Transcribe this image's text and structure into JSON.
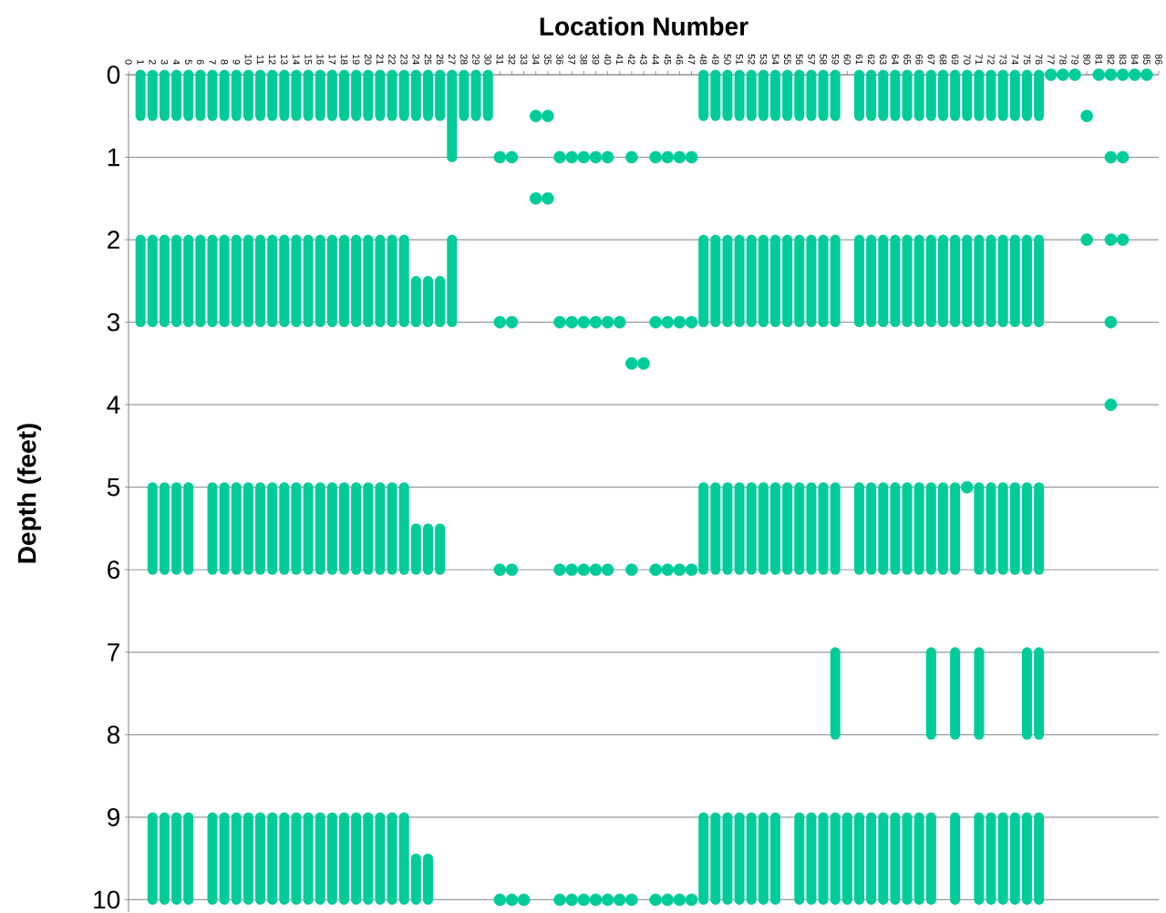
{
  "chart_data": {
    "type": "bar",
    "xlabel": "Location Number",
    "ylabel": "Depth (feet)",
    "categories": [
      "0",
      "1",
      "2",
      "3",
      "4",
      "5",
      "6",
      "7",
      "8",
      "9",
      "10",
      "11",
      "12",
      "13",
      "14",
      "15",
      "16",
      "17",
      "18",
      "19",
      "20",
      "21",
      "22",
      "23",
      "24",
      "25",
      "26",
      "27",
      "28",
      "29",
      "30",
      "31",
      "32",
      "33",
      "34",
      "35",
      "36",
      "37",
      "38",
      "39",
      "40",
      "41",
      "42",
      "43",
      "44",
      "45",
      "46",
      "47",
      "48",
      "49",
      "50",
      "51",
      "52",
      "53",
      "54",
      "55",
      "56",
      "57",
      "58",
      "59",
      "60",
      "61",
      "62",
      "63",
      "64",
      "65",
      "66",
      "67",
      "68",
      "69",
      "70",
      "71",
      "72",
      "73",
      "74",
      "75",
      "76",
      "77",
      "78",
      "79",
      "80",
      "81",
      "82",
      "83",
      "84",
      "85",
      "86"
    ],
    "series": [
      {
        "color": "#00cc99",
        "base": [
          null,
          0,
          0,
          0,
          0,
          0,
          0,
          0,
          0,
          0,
          0,
          0,
          0,
          0,
          0,
          0,
          0,
          0,
          0,
          0,
          0,
          0,
          0,
          0,
          0,
          0,
          0,
          0,
          0,
          0,
          0,
          null,
          null,
          null,
          null,
          null,
          null,
          null,
          null,
          null,
          null,
          null,
          null,
          null,
          null,
          null,
          null,
          null,
          0,
          0,
          0,
          0,
          0,
          0,
          0,
          0,
          0,
          0,
          0,
          0,
          9,
          0,
          0,
          0,
          0,
          0,
          0,
          0,
          0,
          0,
          0,
          0,
          0,
          0,
          0,
          0,
          0,
          null,
          null,
          null,
          null,
          null,
          null,
          null,
          null,
          null,
          null
        ],
        "values": [
          null,
          0.5,
          0.5,
          0.5,
          0.5,
          0.5,
          0.5,
          0.5,
          0.5,
          0.5,
          0.5,
          0.5,
          0.5,
          0.5,
          0.5,
          0.5,
          0.5,
          0.5,
          0.5,
          0.5,
          0.5,
          0.5,
          0.5,
          0.5,
          0.5,
          0.5,
          0.5,
          1,
          0.5,
          0.5,
          0.5,
          null,
          null,
          null,
          null,
          null,
          null,
          null,
          null,
          null,
          null,
          null,
          null,
          null,
          null,
          null,
          null,
          null,
          0.5,
          0.5,
          0.5,
          0.5,
          0.5,
          0.5,
          0.5,
          0.5,
          0.5,
          0.5,
          0.5,
          0.5,
          1,
          0.5,
          0.5,
          0.5,
          0.5,
          0.5,
          0.5,
          0.5,
          0.5,
          0.5,
          0.5,
          0.5,
          0.5,
          0.5,
          0.5,
          0.5,
          0.5,
          null,
          null,
          null,
          null,
          null,
          null,
          null,
          null,
          null,
          null
        ]
      },
      {
        "color": "#00cc99",
        "base": [
          null,
          2,
          2,
          2,
          2,
          2,
          2,
          2,
          2,
          2,
          2,
          2,
          2,
          2,
          2,
          2,
          2,
          2,
          2,
          2,
          2,
          2,
          2,
          2,
          2.5,
          2.5,
          2.5,
          2,
          null,
          null,
          null,
          null,
          null,
          null,
          null,
          null,
          null,
          null,
          null,
          null,
          null,
          null,
          null,
          null,
          null,
          null,
          null,
          null,
          2,
          2,
          2,
          2,
          2,
          2,
          2,
          2,
          2,
          2,
          2,
          2,
          null,
          2,
          2,
          2,
          2,
          2,
          2,
          2,
          2,
          2,
          2,
          2,
          2,
          2,
          2,
          2,
          2,
          null,
          null,
          null,
          null,
          null,
          null,
          null,
          null,
          null,
          null
        ],
        "values": [
          null,
          1,
          1,
          1,
          1,
          1,
          1,
          1,
          1,
          1,
          1,
          1,
          1,
          1,
          1,
          1,
          1,
          1,
          1,
          1,
          1,
          1,
          1,
          1,
          0.5,
          0.5,
          0.5,
          1,
          null,
          null,
          null,
          null,
          null,
          null,
          null,
          null,
          null,
          null,
          null,
          null,
          null,
          null,
          null,
          null,
          null,
          null,
          null,
          null,
          1,
          1,
          1,
          1,
          1,
          1,
          1,
          1,
          1,
          1,
          1,
          1,
          null,
          1,
          1,
          1,
          1,
          1,
          1,
          1,
          1,
          1,
          1,
          1,
          1,
          1,
          1,
          1,
          1,
          null,
          null,
          null,
          null,
          null,
          null,
          null,
          null,
          null,
          null
        ]
      },
      {
        "color": "#00cc99",
        "base": [
          null,
          null,
          5,
          5,
          5,
          5,
          null,
          5,
          5,
          5,
          5,
          5,
          5,
          5,
          5,
          5,
          5,
          5,
          5,
          5,
          5,
          5,
          5,
          5,
          5.5,
          5.5,
          5.5,
          null,
          null,
          null,
          null,
          null,
          null,
          null,
          null,
          null,
          null,
          null,
          null,
          null,
          null,
          null,
          null,
          null,
          null,
          null,
          null,
          null,
          5,
          5,
          5,
          5,
          5,
          5,
          5,
          5,
          5,
          5,
          5,
          5,
          null,
          5,
          5,
          5,
          5,
          5,
          5,
          5,
          5,
          5,
          null,
          5,
          5,
          5,
          5,
          5,
          5,
          null,
          null,
          null,
          null,
          null,
          null,
          null,
          null,
          null,
          null
        ],
        "values": [
          null,
          null,
          1,
          1,
          1,
          1,
          null,
          1,
          1,
          1,
          1,
          1,
          1,
          1,
          1,
          1,
          1,
          1,
          1,
          1,
          1,
          1,
          1,
          1,
          0.5,
          0.5,
          0.5,
          null,
          null,
          null,
          null,
          null,
          null,
          null,
          null,
          null,
          null,
          null,
          null,
          null,
          null,
          null,
          null,
          null,
          null,
          null,
          null,
          null,
          1,
          1,
          1,
          1,
          1,
          1,
          1,
          1,
          1,
          1,
          1,
          1,
          null,
          1,
          1,
          1,
          1,
          1,
          1,
          1,
          1,
          1,
          null,
          1,
          1,
          1,
          1,
          1,
          1,
          null,
          null,
          null,
          null,
          null,
          null,
          null,
          null,
          null,
          null
        ]
      },
      {
        "color": "#00cc99",
        "base": [
          null,
          null,
          9,
          9,
          9,
          9,
          null,
          9,
          9,
          9,
          9,
          9,
          9,
          9,
          9,
          9,
          9,
          9,
          9,
          9,
          9,
          9,
          9,
          9,
          9.5,
          9.5,
          null,
          null,
          null,
          null,
          null,
          null,
          null,
          null,
          null,
          null,
          null,
          null,
          null,
          null,
          null,
          null,
          null,
          null,
          null,
          null,
          null,
          null,
          9,
          9,
          9,
          9,
          9,
          9,
          9,
          null,
          9,
          9,
          9,
          7,
          null,
          9,
          9,
          9,
          9,
          9,
          9,
          7,
          null,
          7,
          null,
          7,
          9,
          9,
          9,
          7,
          7,
          null,
          null,
          null,
          null,
          null,
          null,
          null,
          null,
          null,
          null
        ],
        "values": [
          null,
          null,
          1,
          1,
          1,
          1,
          null,
          1,
          1,
          1,
          1,
          1,
          1,
          1,
          1,
          1,
          1,
          1,
          1,
          1,
          1,
          1,
          1,
          1,
          0.5,
          0.5,
          null,
          null,
          null,
          null,
          null,
          null,
          null,
          null,
          null,
          null,
          null,
          null,
          null,
          null,
          null,
          null,
          null,
          null,
          null,
          null,
          null,
          null,
          1,
          1,
          1,
          1,
          1,
          1,
          1,
          null,
          1,
          1,
          1,
          1,
          null,
          1,
          1,
          1,
          1,
          1,
          1,
          1,
          null,
          1,
          null,
          1,
          1,
          1,
          1,
          1,
          1,
          null,
          null,
          null,
          null,
          null,
          null,
          null,
          null,
          null,
          null
        ]
      },
      {
        "color": "#00cc99",
        "base": [
          null,
          null,
          null,
          null,
          null,
          null,
          null,
          null,
          null,
          null,
          null,
          null,
          null,
          null,
          null,
          null,
          null,
          null,
          null,
          null,
          null,
          null,
          null,
          null,
          null,
          null,
          null,
          null,
          null,
          null,
          null,
          null,
          null,
          null,
          null,
          null,
          null,
          null,
          null,
          null,
          null,
          null,
          null,
          null,
          null,
          null,
          null,
          null,
          null,
          null,
          null,
          null,
          null,
          null,
          null,
          null,
          null,
          null,
          null,
          9,
          null,
          null,
          null,
          null,
          null,
          null,
          null,
          9,
          null,
          9,
          null,
          9,
          null,
          null,
          null,
          9,
          9,
          null,
          null,
          null,
          null,
          null,
          null,
          null,
          null,
          null,
          null
        ],
        "values": [
          null,
          null,
          null,
          null,
          null,
          null,
          null,
          null,
          null,
          null,
          null,
          null,
          null,
          null,
          null,
          null,
          null,
          null,
          null,
          null,
          null,
          null,
          null,
          null,
          null,
          null,
          null,
          null,
          null,
          null,
          null,
          null,
          null,
          null,
          null,
          null,
          null,
          null,
          null,
          null,
          null,
          null,
          null,
          null,
          null,
          null,
          null,
          null,
          null,
          null,
          null,
          null,
          null,
          null,
          null,
          null,
          null,
          null,
          null,
          1,
          null,
          null,
          null,
          null,
          null,
          null,
          null,
          1,
          null,
          1,
          null,
          1,
          null,
          null,
          null,
          1,
          1,
          null,
          null,
          null,
          null,
          null,
          null,
          null,
          null,
          null,
          null
        ]
      },
      {
        "type": "scatter",
        "color": "#00cc99",
        "marker": "circle",
        "x": [
          "31",
          "31",
          "31",
          "31",
          "32",
          "32",
          "32",
          "32",
          "33",
          "34",
          "34",
          "35",
          "35",
          "36",
          "36",
          "36",
          "36",
          "37",
          "37",
          "37",
          "37",
          "38",
          "38",
          "38",
          "38",
          "39",
          "39",
          "39",
          "39",
          "40",
          "40",
          "40",
          "40",
          "41",
          "41",
          "42",
          "42",
          "42",
          "42",
          "43",
          "44",
          "44",
          "44",
          "44",
          "45",
          "45",
          "45",
          "45",
          "46",
          "46",
          "46",
          "46",
          "47",
          "47",
          "47",
          "47",
          "70",
          "77",
          "78",
          "79",
          "80",
          "80",
          "81",
          "82",
          "82",
          "82",
          "82",
          "82",
          "83",
          "83",
          "83",
          "84",
          "85"
        ],
        "values": [
          1,
          3,
          6,
          10,
          1,
          3,
          6,
          10,
          10,
          0.5,
          1.5,
          0.5,
          1.5,
          1,
          3,
          6,
          10,
          1,
          3,
          6,
          10,
          1,
          3,
          6,
          10,
          1,
          3,
          6,
          10,
          1,
          3,
          6,
          10,
          3,
          10,
          1,
          3.5,
          6,
          10,
          3.5,
          1,
          3,
          6,
          10,
          1,
          3,
          6,
          10,
          1,
          3,
          6,
          10,
          1,
          3,
          6,
          10,
          5,
          0,
          0,
          0,
          0.5,
          2,
          0,
          0,
          1,
          2,
          3,
          4,
          0,
          1,
          2,
          0,
          0
        ]
      }
    ],
    "ylim": [
      10.15,
      0
    ],
    "yticks": [
      0,
      1,
      2,
      3,
      4,
      5,
      6,
      7,
      8,
      9,
      10
    ],
    "grid": "y"
  }
}
